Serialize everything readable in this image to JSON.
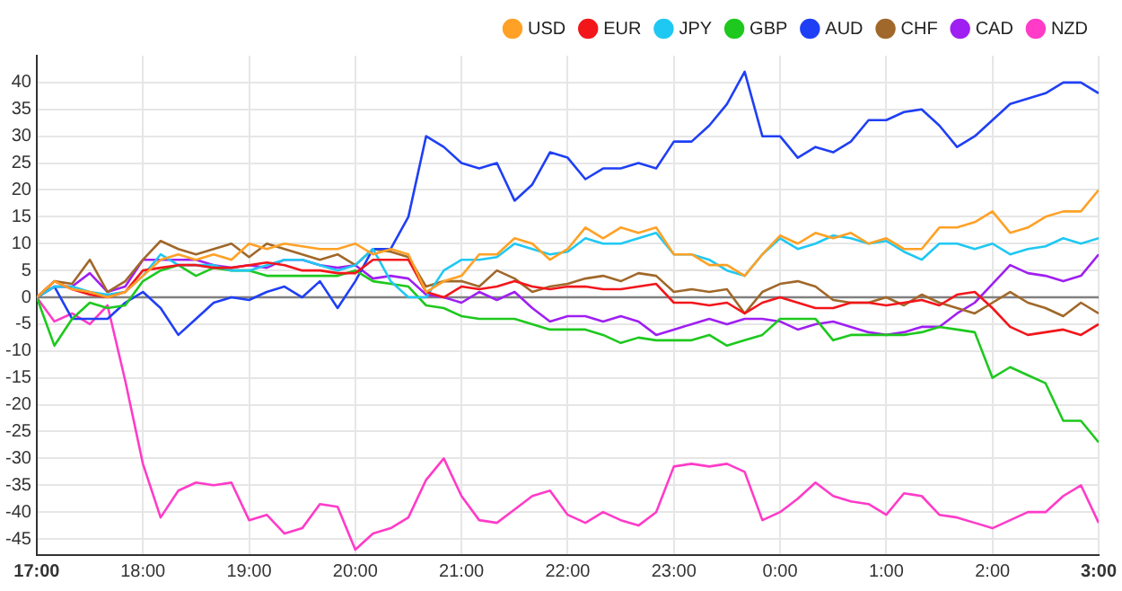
{
  "chart_data": {
    "type": "line",
    "x": [
      "--01-01T17:00",
      "--01-01T17:10",
      "--01-01T17:20",
      "--01-01T17:30",
      "--01-01T17:40",
      "--01-01T17:50",
      "--01-01T18:00",
      "--01-01T18:10",
      "--01-01T18:20",
      "--01-01T18:30",
      "--01-01T18:40",
      "--01-01T18:50",
      "--01-01T19:00",
      "--01-01T19:10",
      "--01-01T19:20",
      "--01-01T19:30",
      "--01-01T19:40",
      "--01-01T19:50",
      "--01-01T20:00",
      "--01-01T20:10",
      "--01-01T20:20",
      "--01-01T20:30",
      "--01-01T20:40",
      "--01-01T20:50",
      "--01-01T21:00",
      "--01-01T21:10",
      "--01-01T21:20",
      "--01-01T21:30",
      "--01-01T21:40",
      "--01-01T21:50",
      "--01-01T22:00",
      "--01-01T22:10",
      "--01-01T22:20",
      "--01-01T22:30",
      "--01-01T22:40",
      "--01-01T22:50",
      "--01-01T23:00",
      "--01-01T23:10",
      "--01-01T23:20",
      "--01-01T23:30",
      "--01-01T23:40",
      "--01-01T23:50",
      "--01-02T00:00",
      "--01-02T00:10",
      "--01-02T00:20",
      "--01-02T00:30",
      "--01-02T00:40",
      "--01-02T00:50",
      "--01-02T01:00",
      "--01-02T01:10",
      "--01-02T01:20",
      "--01-02T01:30",
      "--01-02T01:40",
      "--01-02T01:50",
      "--01-02T02:00",
      "--01-02T02:10",
      "--01-02T02:20",
      "--01-02T02:30",
      "--01-02T02:40",
      "--01-02T02:50",
      "--01-02T03:00"
    ],
    "series": [
      {
        "name": "USD",
        "color": "#ffa126",
        "values": [
          0,
          3,
          1.5,
          1,
          0,
          1,
          4,
          7,
          8,
          7,
          8,
          7,
          10,
          9,
          10,
          9.5,
          9,
          9,
          10,
          8,
          9,
          8,
          1,
          3,
          4,
          8,
          8,
          11,
          10,
          7,
          9,
          13,
          11,
          13,
          12,
          13,
          8,
          8,
          6,
          6,
          4,
          8,
          11.5,
          10,
          12,
          11,
          12,
          10,
          11,
          9,
          9,
          13,
          13,
          14,
          16,
          12,
          13,
          15,
          16,
          16,
          20
        ]
      },
      {
        "name": "EUR",
        "color": "#f2161b",
        "values": [
          0,
          3,
          1.5,
          0.5,
          0,
          1,
          5,
          5.5,
          6,
          6,
          5.5,
          5.5,
          6,
          6.5,
          6,
          5,
          5,
          4.5,
          4.5,
          7,
          7,
          7,
          1,
          0,
          2,
          1.5,
          2,
          3,
          2,
          1.5,
          2,
          2,
          1.5,
          1.5,
          2,
          2.5,
          -1,
          -1,
          -1.5,
          -1,
          -3,
          -1,
          0,
          -1,
          -2,
          -2,
          -1,
          -1,
          -1.5,
          -1,
          -0.5,
          -1.5,
          0.5,
          1,
          -2,
          -5.5,
          -7,
          -6.5,
          -6,
          -7,
          -5
        ]
      },
      {
        "name": "JPY",
        "color": "#1fc8f2",
        "values": [
          0,
          2,
          2,
          1,
          0.5,
          1,
          4,
          8,
          6,
          6,
          6,
          5,
          5,
          6,
          7,
          7,
          6,
          5,
          6,
          9,
          3,
          0,
          0,
          5,
          7,
          7,
          7.5,
          10,
          9,
          8,
          8.5,
          11,
          10,
          10,
          11,
          12,
          8,
          8,
          7,
          5,
          4,
          8,
          11,
          9,
          10,
          11.5,
          11,
          10,
          10.5,
          8.5,
          7,
          10,
          10,
          9,
          10,
          8,
          9,
          9.5,
          11,
          10,
          11
        ]
      },
      {
        "name": "GBP",
        "color": "#1ec81e",
        "values": [
          0,
          -9,
          -4,
          -1,
          -2,
          -1.5,
          3,
          5,
          6,
          4,
          5.5,
          5,
          5,
          4,
          4,
          4,
          4,
          4,
          5,
          3,
          2.5,
          2,
          -1.5,
          -2,
          -3.5,
          -4,
          -4,
          -4,
          -5,
          -6,
          -6,
          -6,
          -7,
          -8.5,
          -7.5,
          -8,
          -8,
          -8,
          -7,
          -9,
          -8,
          -7,
          -4,
          -4,
          -4,
          -8,
          -7,
          -7,
          -7,
          -7,
          -6.5,
          -5.5,
          -6,
          -6.5,
          -15,
          -13,
          -14.5,
          -16,
          -23,
          -23,
          -27
        ]
      },
      {
        "name": "AUD",
        "color": "#1f3ff5",
        "values": [
          0,
          2,
          -4,
          -4,
          -4,
          -1,
          1,
          -2,
          -7,
          -4,
          -1,
          0,
          -0.5,
          1,
          2,
          0,
          3,
          -2,
          3,
          9,
          9,
          15,
          30,
          28,
          25,
          24,
          25,
          18,
          21,
          27,
          26,
          22,
          24,
          24,
          25,
          24,
          29,
          29,
          32,
          36,
          42,
          30,
          30,
          26,
          28,
          27,
          29,
          33,
          33,
          34.5,
          35,
          32,
          28,
          30,
          33,
          36,
          37,
          38,
          40,
          40,
          38
        ]
      },
      {
        "name": "CHF",
        "color": "#a0682a",
        "values": [
          0,
          3,
          2.5,
          7,
          1,
          3,
          7,
          10.5,
          9,
          8,
          9,
          10,
          7.5,
          10,
          9,
          8,
          7,
          8,
          6,
          9,
          8.5,
          7.5,
          2,
          3,
          3,
          2,
          5,
          3.5,
          1,
          2,
          2.5,
          3.5,
          4,
          3,
          4.5,
          4,
          1,
          1.5,
          1,
          1.5,
          -3,
          1,
          2.5,
          3,
          2,
          -0.5,
          -1,
          -1,
          0,
          -1.5,
          0.5,
          -1,
          -2,
          -3,
          -1,
          1,
          -1,
          -2,
          -3.5,
          -1,
          -3
        ]
      },
      {
        "name": "CAD",
        "color": "#9f1ff2",
        "values": [
          0,
          2,
          2,
          4.5,
          1,
          2,
          7,
          7,
          7,
          7,
          6,
          5.5,
          6,
          5.5,
          7,
          7,
          6,
          5.5,
          6,
          3.5,
          4,
          3.5,
          0.5,
          0,
          -1,
          1,
          -0.5,
          1,
          -2,
          -4.5,
          -3.5,
          -3.5,
          -4.5,
          -3.5,
          -4.5,
          -7,
          -6,
          -5,
          -4,
          -5,
          -4,
          -4,
          -4.5,
          -6,
          -5,
          -4.5,
          -5.5,
          -6.5,
          -7,
          -6.5,
          -5.5,
          -5.5,
          -3,
          -1,
          2.5,
          6,
          4.5,
          4,
          3,
          4,
          8
        ]
      },
      {
        "name": "NZD",
        "color": "#ff3bc8",
        "values": [
          0,
          -4.5,
          -3,
          -5,
          -1.5,
          -15.5,
          -31,
          -41,
          -36,
          -34.5,
          -35,
          -34.5,
          -41.5,
          -40.5,
          -44,
          -43,
          -38.5,
          -39,
          -47,
          -44,
          -43,
          -41,
          -34,
          -30,
          -37,
          -41.5,
          -42,
          -39.5,
          -37,
          -36,
          -40.5,
          -42,
          -40,
          -41.5,
          -42.5,
          -40,
          -31.5,
          -31,
          -31.5,
          -31,
          -32.5,
          -41.5,
          -40,
          -37.5,
          -34.5,
          -37,
          -38,
          -38.5,
          -40.5,
          -36.5,
          -37,
          -40.5,
          -41,
          -42,
          -43,
          -41.5,
          -40,
          -40,
          -37,
          -35,
          -42
        ]
      }
    ],
    "xlim": [
      "--01-01T17:00",
      "--01-02T03:00"
    ],
    "xticks": [
      {
        "value": "--01-01T17:00",
        "label": "17:00"
      },
      {
        "value": "--01-01T18:00",
        "label": "18:00"
      },
      {
        "value": "--01-01T19:00",
        "label": "19:00"
      },
      {
        "value": "--01-01T20:00",
        "label": "20:00"
      },
      {
        "value": "--01-01T21:00",
        "label": "21:00"
      },
      {
        "value": "--01-01T22:00",
        "label": "22:00"
      },
      {
        "value": "--01-01T23:00",
        "label": "23:00"
      },
      {
        "value": "--01-02T00:00",
        "label": "0:00"
      },
      {
        "value": "--01-02T01:00",
        "label": "1:00"
      },
      {
        "value": "--01-02T02:00",
        "label": "2:00"
      },
      {
        "value": "--01-02T03:00",
        "label": "3:00"
      }
    ],
    "ylim": [
      -48,
      45
    ],
    "yticks": [
      -45,
      -40,
      -35,
      -30,
      -25,
      -20,
      -15,
      -10,
      -5,
      0,
      5,
      10,
      15,
      20,
      25,
      30,
      35,
      40
    ],
    "ref_lines": [
      {
        "axis": "y",
        "value": 0,
        "color": "#808080"
      }
    ],
    "grid": true,
    "legend": "top right"
  }
}
